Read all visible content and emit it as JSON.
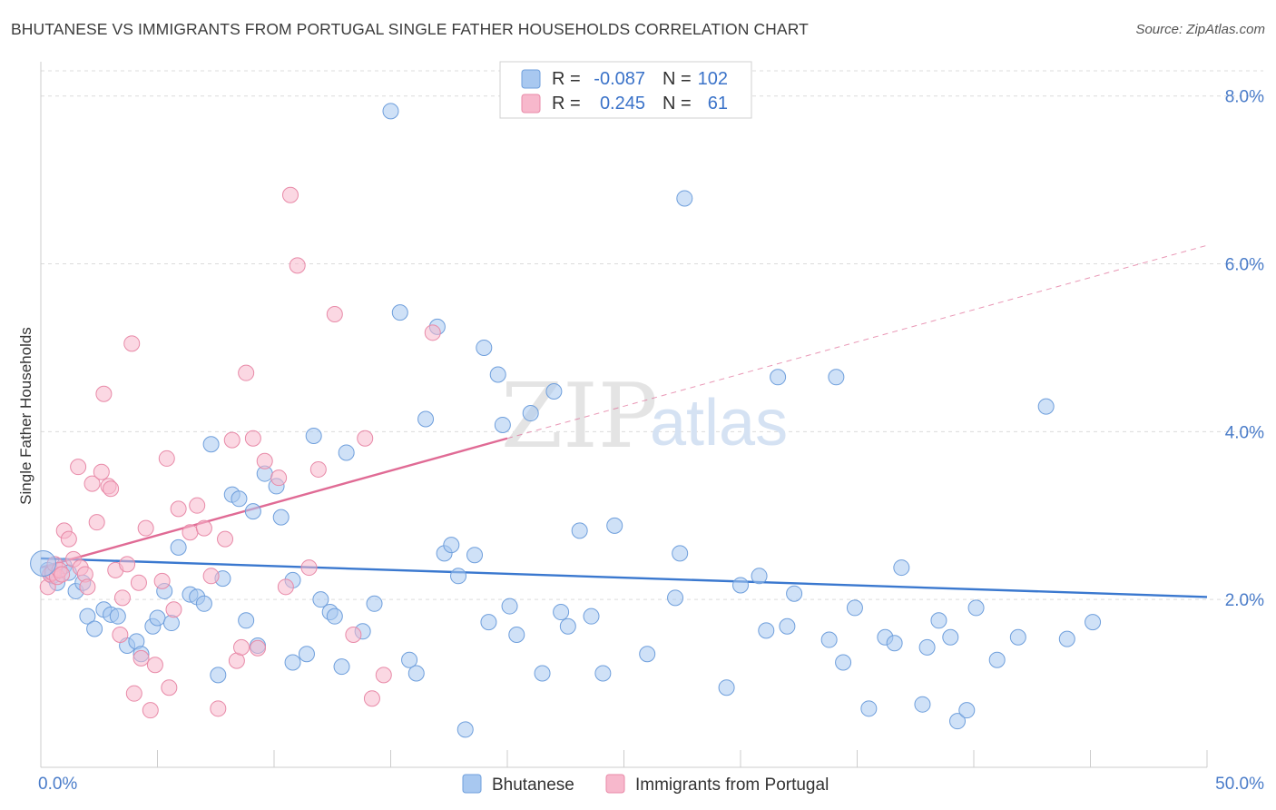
{
  "title": "BHUTANESE VS IMMIGRANTS FROM PORTUGAL SINGLE FATHER HOUSEHOLDS CORRELATION CHART",
  "source": "Source: ZipAtlas.com",
  "watermark": {
    "part1": "ZIP",
    "part2": "atlas"
  },
  "legend": {
    "rows": [
      {
        "r_label": "R =",
        "r_value": "-0.087",
        "n_label": "N =",
        "n_value": "102",
        "color": "#a8c8f0",
        "stroke": "#6f9fdc"
      },
      {
        "r_label": "R =",
        "r_value": "0.245",
        "n_label": "N =",
        "n_value": "61",
        "color": "#f7b8cc",
        "stroke": "#e88aa8"
      }
    ]
  },
  "bottom_legend": [
    {
      "label": "Bhutanese",
      "color": "#a8c8f0",
      "stroke": "#6f9fdc"
    },
    {
      "label": "Immigrants from Portugal",
      "color": "#f7b8cc",
      "stroke": "#e88aa8"
    }
  ],
  "chart_data": {
    "type": "scatter",
    "title": "BHUTANESE VS IMMIGRANTS FROM PORTUGAL SINGLE FATHER HOUSEHOLDS CORRELATION CHART",
    "xlabel": "",
    "ylabel": "Single Father Households",
    "xlim": [
      0,
      50
    ],
    "ylim": [
      0,
      8.3
    ],
    "x_tick_labels": [
      "0.0%",
      "50.0%"
    ],
    "y_ticks": [
      2,
      4,
      6,
      8
    ],
    "y_tick_labels": [
      "2.0%",
      "4.0%",
      "6.0%",
      "8.0%"
    ],
    "grid": "horizontal dashed",
    "legend_position": "top-center",
    "series": [
      {
        "name": "Bhutanese",
        "color": "#6f9fdc",
        "fill": "#a8c8f0",
        "trend": {
          "x": [
            0,
            50
          ],
          "y": [
            2.49,
            2.03
          ],
          "color": "#3a78cf"
        },
        "points": [
          [
            0.3,
            2.35
          ],
          [
            0.5,
            2.28
          ],
          [
            0.7,
            2.2
          ],
          [
            1.0,
            2.4
          ],
          [
            1.2,
            2.32
          ],
          [
            1.5,
            2.1
          ],
          [
            1.8,
            2.2
          ],
          [
            2.0,
            1.8
          ],
          [
            2.3,
            1.65
          ],
          [
            2.7,
            1.88
          ],
          [
            3.0,
            1.82
          ],
          [
            3.3,
            1.8
          ],
          [
            3.7,
            1.45
          ],
          [
            4.1,
            1.5
          ],
          [
            4.3,
            1.35
          ],
          [
            4.8,
            1.68
          ],
          [
            5.0,
            1.78
          ],
          [
            5.3,
            2.1
          ],
          [
            5.6,
            1.72
          ],
          [
            5.9,
            2.62
          ],
          [
            6.4,
            2.06
          ],
          [
            6.7,
            2.03
          ],
          [
            7.0,
            1.95
          ],
          [
            7.3,
            3.85
          ],
          [
            7.6,
            1.1
          ],
          [
            7.8,
            2.25
          ],
          [
            8.2,
            3.25
          ],
          [
            8.5,
            3.2
          ],
          [
            8.8,
            1.75
          ],
          [
            9.1,
            3.05
          ],
          [
            9.3,
            1.45
          ],
          [
            9.6,
            3.5
          ],
          [
            10.1,
            3.35
          ],
          [
            10.3,
            2.98
          ],
          [
            10.8,
            2.23
          ],
          [
            10.8,
            1.25
          ],
          [
            11.4,
            1.35
          ],
          [
            11.7,
            3.95
          ],
          [
            12.0,
            2.0
          ],
          [
            12.4,
            1.85
          ],
          [
            12.6,
            1.8
          ],
          [
            12.9,
            1.2
          ],
          [
            13.1,
            3.75
          ],
          [
            13.8,
            1.62
          ],
          [
            14.3,
            1.95
          ],
          [
            15.0,
            7.82
          ],
          [
            15.4,
            5.42
          ],
          [
            15.8,
            1.28
          ],
          [
            16.1,
            1.12
          ],
          [
            16.5,
            4.15
          ],
          [
            17.0,
            5.25
          ],
          [
            17.3,
            2.55
          ],
          [
            17.6,
            2.65
          ],
          [
            17.9,
            2.28
          ],
          [
            18.2,
            0.45
          ],
          [
            18.6,
            2.53
          ],
          [
            19.0,
            5.0
          ],
          [
            19.2,
            1.73
          ],
          [
            19.6,
            4.68
          ],
          [
            19.8,
            4.08
          ],
          [
            20.1,
            1.92
          ],
          [
            20.4,
            1.58
          ],
          [
            21.0,
            4.22
          ],
          [
            21.5,
            1.12
          ],
          [
            22.0,
            4.48
          ],
          [
            22.3,
            1.85
          ],
          [
            22.6,
            1.68
          ],
          [
            23.1,
            2.82
          ],
          [
            23.6,
            1.8
          ],
          [
            24.1,
            1.12
          ],
          [
            24.6,
            2.88
          ],
          [
            26.0,
            1.35
          ],
          [
            27.2,
            2.02
          ],
          [
            27.4,
            2.55
          ],
          [
            27.6,
            6.78
          ],
          [
            29.4,
            0.95
          ],
          [
            30.0,
            2.17
          ],
          [
            30.8,
            2.28
          ],
          [
            31.1,
            1.63
          ],
          [
            31.6,
            4.65
          ],
          [
            32.0,
            1.68
          ],
          [
            32.3,
            2.07
          ],
          [
            33.8,
            1.52
          ],
          [
            34.1,
            4.65
          ],
          [
            34.4,
            1.25
          ],
          [
            34.9,
            1.9
          ],
          [
            35.5,
            0.7
          ],
          [
            36.2,
            1.55
          ],
          [
            36.6,
            1.48
          ],
          [
            36.9,
            2.38
          ],
          [
            37.8,
            0.75
          ],
          [
            38.0,
            1.43
          ],
          [
            38.5,
            1.75
          ],
          [
            39.0,
            1.55
          ],
          [
            39.3,
            0.55
          ],
          [
            39.7,
            0.68
          ],
          [
            40.1,
            1.9
          ],
          [
            41.0,
            1.28
          ],
          [
            41.9,
            1.55
          ],
          [
            43.1,
            4.3
          ],
          [
            44.0,
            1.53
          ],
          [
            45.1,
            1.73
          ]
        ]
      },
      {
        "name": "Immigrants from Portugal",
        "color": "#e88aa8",
        "fill": "#f7b8cc",
        "trend": {
          "x": [
            0,
            20
          ],
          "y": [
            2.38,
            3.92
          ],
          "dashed_to": [
            50,
            6.22
          ],
          "color": "#e06b95"
        },
        "points": [
          [
            0.3,
            2.15
          ],
          [
            0.4,
            2.3
          ],
          [
            0.5,
            2.32
          ],
          [
            0.6,
            2.42
          ],
          [
            0.7,
            2.27
          ],
          [
            0.8,
            2.35
          ],
          [
            0.9,
            2.3
          ],
          [
            1.0,
            2.82
          ],
          [
            1.2,
            2.72
          ],
          [
            1.4,
            2.48
          ],
          [
            1.6,
            3.58
          ],
          [
            1.7,
            2.38
          ],
          [
            1.9,
            2.3
          ],
          [
            2.0,
            2.15
          ],
          [
            2.2,
            3.38
          ],
          [
            2.4,
            2.92
          ],
          [
            2.6,
            3.52
          ],
          [
            2.7,
            4.45
          ],
          [
            2.9,
            3.35
          ],
          [
            3.0,
            3.32
          ],
          [
            3.2,
            2.35
          ],
          [
            3.4,
            1.58
          ],
          [
            3.5,
            2.02
          ],
          [
            3.7,
            2.42
          ],
          [
            3.9,
            5.05
          ],
          [
            4.0,
            0.88
          ],
          [
            4.2,
            2.2
          ],
          [
            4.3,
            1.3
          ],
          [
            4.5,
            2.85
          ],
          [
            4.7,
            0.68
          ],
          [
            4.9,
            1.22
          ],
          [
            5.2,
            2.22
          ],
          [
            5.4,
            3.68
          ],
          [
            5.5,
            0.95
          ],
          [
            5.7,
            1.88
          ],
          [
            5.9,
            3.08
          ],
          [
            6.4,
            2.8
          ],
          [
            6.7,
            3.12
          ],
          [
            7.0,
            2.85
          ],
          [
            7.3,
            2.28
          ],
          [
            7.6,
            0.7
          ],
          [
            7.9,
            2.72
          ],
          [
            8.2,
            3.9
          ],
          [
            8.4,
            1.27
          ],
          [
            8.6,
            1.43
          ],
          [
            8.8,
            4.7
          ],
          [
            9.1,
            3.92
          ],
          [
            9.3,
            1.42
          ],
          [
            9.6,
            3.65
          ],
          [
            10.2,
            3.45
          ],
          [
            10.5,
            2.15
          ],
          [
            10.7,
            6.82
          ],
          [
            11.0,
            5.98
          ],
          [
            11.5,
            2.38
          ],
          [
            11.9,
            3.55
          ],
          [
            12.6,
            5.4
          ],
          [
            13.4,
            1.58
          ],
          [
            13.9,
            3.92
          ],
          [
            14.2,
            0.82
          ],
          [
            14.7,
            1.1
          ],
          [
            16.8,
            5.18
          ]
        ]
      }
    ]
  }
}
